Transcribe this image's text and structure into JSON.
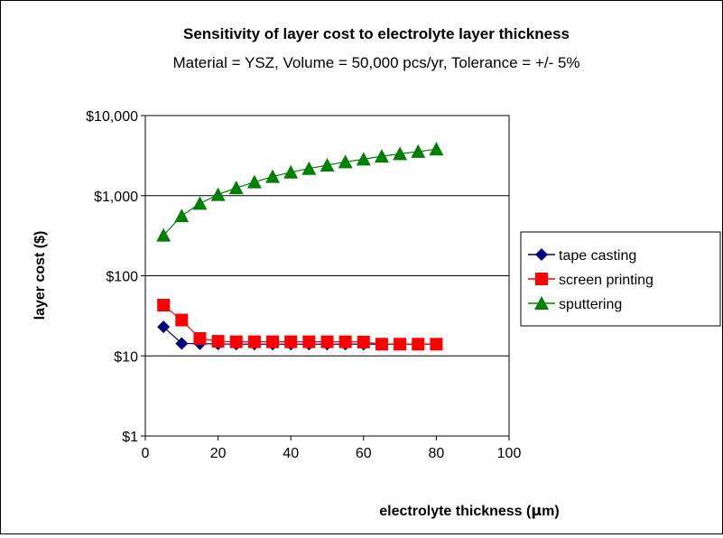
{
  "chart_data": {
    "type": "scatter",
    "title": "Sensitivity of layer cost to electrolyte layer thickness",
    "subtitle": "Material = YSZ, Volume = 50,000 pcs/yr, Tolerance =  +/- 5%",
    "xlabel_prefix": "electrolyte thickness (",
    "xlabel_mu": "μ",
    "xlabel_suffix": "m)",
    "ylabel": "layer cost ($)",
    "xlim": [
      0,
      100
    ],
    "ylim": [
      1,
      10000
    ],
    "y_scale": "log",
    "grid": "horizontal",
    "legend_position": "right",
    "x_ticks": [
      "0",
      "20",
      "40",
      "60",
      "80",
      "100"
    ],
    "y_ticks": [
      "$1",
      "$10",
      "$100",
      "$1,000",
      "$10,000"
    ],
    "x": [
      5,
      10,
      15,
      20,
      25,
      30,
      35,
      40,
      45,
      50,
      55,
      60,
      65,
      70,
      75,
      80
    ],
    "series": [
      {
        "name": "tape casting",
        "color": "#000080",
        "marker": "diamond",
        "values": [
          23,
          14.3,
          14.2,
          14.1,
          14.0,
          14.0,
          14.0,
          14.0,
          14.0,
          14.0,
          14.0,
          14.0,
          14.0,
          14.0,
          14.0,
          14.0
        ]
      },
      {
        "name": "screen printing",
        "color": "#ff0000",
        "marker": "square",
        "values": [
          43,
          28,
          16.5,
          15.2,
          15.0,
          15.0,
          15.0,
          15.0,
          15.0,
          15.0,
          15.0,
          14.9,
          14.0,
          14.0,
          14.0,
          14.0
        ]
      },
      {
        "name": "sputtering",
        "color": "#008000",
        "marker": "triangle",
        "values": [
          320,
          560,
          800,
          1030,
          1250,
          1480,
          1730,
          1960,
          2180,
          2400,
          2640,
          2850,
          3100,
          3330,
          3550,
          3800
        ]
      }
    ]
  }
}
